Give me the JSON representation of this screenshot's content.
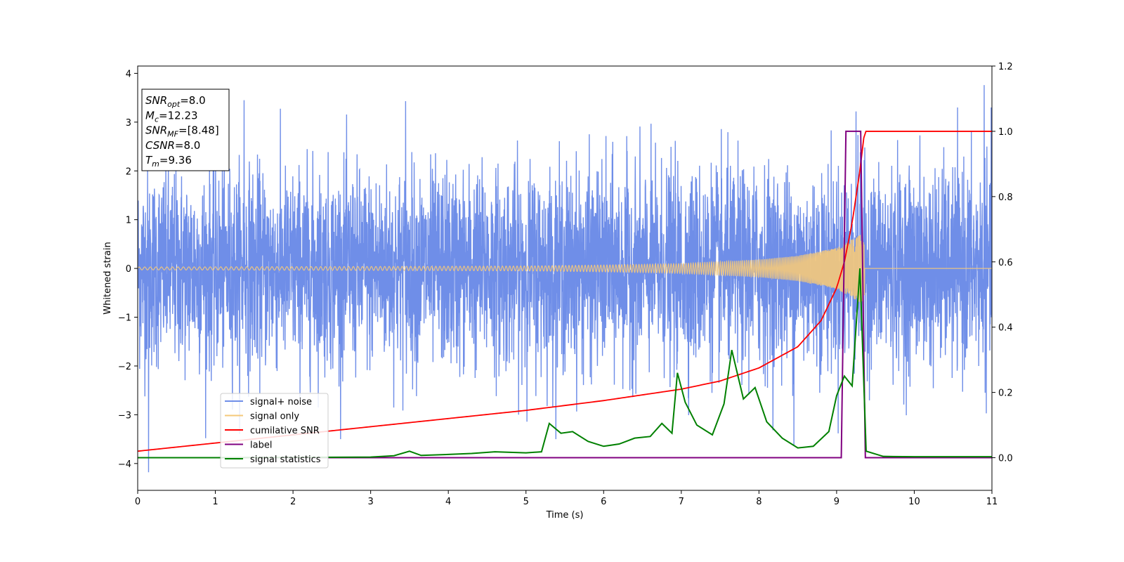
{
  "chart_data": {
    "type": "line",
    "xlabel": "Time (s)",
    "ylabel": "Whitened strain",
    "xlim": [
      0,
      11
    ],
    "ylim_left": [
      -4.55,
      4.15
    ],
    "ylim_right": [
      -0.1,
      1.2
    ],
    "xticks": [
      "0",
      "1",
      "2",
      "3",
      "4",
      "5",
      "6",
      "7",
      "8",
      "9",
      "10",
      "11"
    ],
    "yticks_left": [
      "−4",
      "−3",
      "−2",
      "−1",
      "0",
      "1",
      "2",
      "3",
      "4"
    ],
    "yticks_right": [
      "0.0",
      "0.2",
      "0.4",
      "0.6",
      "0.8",
      "1.0",
      "1.2"
    ],
    "legend_position": "lower-left",
    "info_box": [
      {
        "sym": "SNR",
        "sub": "opt",
        "val": "=8.0"
      },
      {
        "sym": "M",
        "sub": "c",
        "val": "=12.23"
      },
      {
        "sym": "SNR",
        "sub": "MF",
        "val": "=[8.48]"
      },
      {
        "sym": "CSNR",
        "sub": "",
        "val": "=8.0"
      },
      {
        "sym": "T",
        "sub": "m",
        "val": "=9.36"
      }
    ],
    "series": [
      {
        "name": "signal+ noise",
        "color": "#6f8ee8",
        "axis": "left",
        "description_values": "white noise, std about 1, range -4.2 to 3.8",
        "noise_std": 1.0,
        "noise_extremes": [
          [
            0.14,
            -4.18
          ],
          [
            10.9,
            3.76
          ],
          [
            1.37,
            3.45
          ],
          [
            3.45,
            3.43
          ],
          [
            9.25,
            3.22
          ],
          [
            8.45,
            -3.62
          ]
        ]
      },
      {
        "name": "signal only",
        "color": "#f5c97a",
        "axis": "left",
        "chirp_end": 9.36,
        "amplitude_points": [
          [
            0,
            0.03
          ],
          [
            3,
            0.04
          ],
          [
            5,
            0.05
          ],
          [
            6,
            0.07
          ],
          [
            7,
            0.1
          ],
          [
            8,
            0.18
          ],
          [
            8.5,
            0.26
          ],
          [
            9.0,
            0.42
          ],
          [
            9.2,
            0.6
          ],
          [
            9.36,
            0.75
          ]
        ]
      },
      {
        "name": "cumilative SNR",
        "color": "#ff0000",
        "axis": "right",
        "points": [
          [
            0,
            0.02
          ],
          [
            1,
            0.045
          ],
          [
            2,
            0.07
          ],
          [
            3,
            0.095
          ],
          [
            4,
            0.12
          ],
          [
            5,
            0.145
          ],
          [
            6,
            0.175
          ],
          [
            7,
            0.21
          ],
          [
            7.5,
            0.235
          ],
          [
            8,
            0.275
          ],
          [
            8.5,
            0.34
          ],
          [
            8.8,
            0.42
          ],
          [
            9.0,
            0.52
          ],
          [
            9.1,
            0.6
          ],
          [
            9.2,
            0.72
          ],
          [
            9.3,
            0.88
          ],
          [
            9.36,
            1.0
          ],
          [
            11,
            1.0
          ]
        ]
      },
      {
        "name": "label",
        "color": "#800080",
        "axis": "right",
        "points": [
          [
            0,
            0.0
          ],
          [
            9.06,
            0.0
          ],
          [
            9.12,
            1.0
          ],
          [
            9.31,
            1.0
          ],
          [
            9.37,
            0.0
          ],
          [
            11,
            0.0
          ]
        ]
      },
      {
        "name": "signal statistics",
        "color": "#008000",
        "axis": "right",
        "points": [
          [
            0,
            0.0
          ],
          [
            1,
            0.0
          ],
          [
            2,
            0.001
          ],
          [
            3,
            0.002
          ],
          [
            3.3,
            0.006
          ],
          [
            3.5,
            0.02
          ],
          [
            3.65,
            0.007
          ],
          [
            4,
            0.01
          ],
          [
            4.3,
            0.013
          ],
          [
            4.6,
            0.018
          ],
          [
            5.0,
            0.015
          ],
          [
            5.2,
            0.018
          ],
          [
            5.3,
            0.105
          ],
          [
            5.45,
            0.075
          ],
          [
            5.6,
            0.08
          ],
          [
            5.8,
            0.05
          ],
          [
            6.0,
            0.035
          ],
          [
            6.2,
            0.042
          ],
          [
            6.4,
            0.06
          ],
          [
            6.6,
            0.065
          ],
          [
            6.75,
            0.105
          ],
          [
            6.88,
            0.075
          ],
          [
            6.95,
            0.26
          ],
          [
            7.05,
            0.17
          ],
          [
            7.2,
            0.1
          ],
          [
            7.4,
            0.07
          ],
          [
            7.55,
            0.165
          ],
          [
            7.65,
            0.33
          ],
          [
            7.8,
            0.18
          ],
          [
            7.95,
            0.215
          ],
          [
            8.1,
            0.11
          ],
          [
            8.3,
            0.06
          ],
          [
            8.5,
            0.03
          ],
          [
            8.7,
            0.035
          ],
          [
            8.9,
            0.08
          ],
          [
            9.0,
            0.19
          ],
          [
            9.1,
            0.25
          ],
          [
            9.2,
            0.22
          ],
          [
            9.3,
            0.58
          ],
          [
            9.38,
            0.02
          ],
          [
            9.6,
            0.004
          ],
          [
            10,
            0.003
          ],
          [
            11,
            0.003
          ]
        ]
      }
    ]
  }
}
